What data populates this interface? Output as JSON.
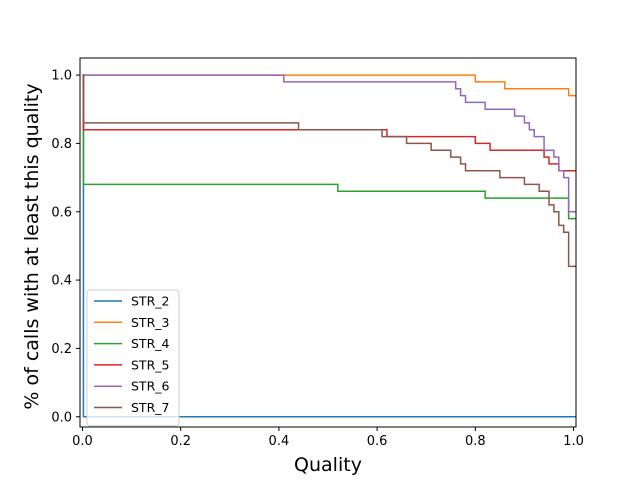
{
  "chart_data": {
    "type": "line",
    "step": true,
    "xlabel": "Quality",
    "ylabel": "% of calls with at least this quality",
    "xlim": [
      -0.005,
      1.005
    ],
    "ylim": [
      -0.03,
      1.05
    ],
    "xticks": [
      0.0,
      0.2,
      0.4,
      0.6,
      0.8,
      1.0
    ],
    "xtick_labels": [
      "0.0",
      "0.2",
      "0.4",
      "0.6",
      "0.8",
      "1.0"
    ],
    "yticks": [
      0.0,
      0.2,
      0.4,
      0.6,
      0.8,
      1.0
    ],
    "ytick_labels": [
      "0.0",
      "0.2",
      "0.4",
      "0.6",
      "0.8",
      "1.0"
    ],
    "grid": false,
    "legend_position": "lower-left",
    "series": [
      {
        "name": "STR_2",
        "color": "#1f77b4",
        "points": [
          [
            0.0,
            1.0
          ],
          [
            0.002,
            1.0
          ],
          [
            0.002,
            0.0
          ],
          [
            1.005,
            0.0
          ]
        ]
      },
      {
        "name": "STR_3",
        "color": "#ff7f0e",
        "points": [
          [
            0.0,
            1.0
          ],
          [
            0.8,
            1.0
          ],
          [
            0.8,
            0.98
          ],
          [
            0.86,
            0.98
          ],
          [
            0.86,
            0.96
          ],
          [
            0.99,
            0.96
          ],
          [
            0.99,
            0.94
          ],
          [
            1.005,
            0.94
          ]
        ]
      },
      {
        "name": "STR_4",
        "color": "#2ca02c",
        "points": [
          [
            0.0,
            1.0
          ],
          [
            0.002,
            1.0
          ],
          [
            0.002,
            0.68
          ],
          [
            0.52,
            0.68
          ],
          [
            0.52,
            0.66
          ],
          [
            0.82,
            0.66
          ],
          [
            0.82,
            0.64
          ],
          [
            0.99,
            0.64
          ],
          [
            0.99,
            0.58
          ],
          [
            1.005,
            0.58
          ]
        ]
      },
      {
        "name": "STR_5",
        "color": "#d62728",
        "points": [
          [
            0.0,
            1.0
          ],
          [
            0.002,
            1.0
          ],
          [
            0.002,
            0.84
          ],
          [
            0.62,
            0.84
          ],
          [
            0.62,
            0.82
          ],
          [
            0.8,
            0.82
          ],
          [
            0.8,
            0.8
          ],
          [
            0.83,
            0.8
          ],
          [
            0.83,
            0.78
          ],
          [
            0.94,
            0.78
          ],
          [
            0.94,
            0.76
          ],
          [
            0.95,
            0.76
          ],
          [
            0.95,
            0.74
          ],
          [
            0.97,
            0.74
          ],
          [
            0.97,
            0.72
          ],
          [
            1.005,
            0.72
          ]
        ]
      },
      {
        "name": "STR_6",
        "color": "#9467bd",
        "points": [
          [
            0.0,
            1.0
          ],
          [
            0.41,
            1.0
          ],
          [
            0.41,
            0.98
          ],
          [
            0.76,
            0.98
          ],
          [
            0.76,
            0.96
          ],
          [
            0.77,
            0.96
          ],
          [
            0.77,
            0.94
          ],
          [
            0.78,
            0.94
          ],
          [
            0.78,
            0.92
          ],
          [
            0.82,
            0.92
          ],
          [
            0.82,
            0.9
          ],
          [
            0.88,
            0.9
          ],
          [
            0.88,
            0.88
          ],
          [
            0.9,
            0.88
          ],
          [
            0.9,
            0.86
          ],
          [
            0.91,
            0.86
          ],
          [
            0.91,
            0.84
          ],
          [
            0.92,
            0.84
          ],
          [
            0.92,
            0.82
          ],
          [
            0.94,
            0.82
          ],
          [
            0.94,
            0.78
          ],
          [
            0.96,
            0.78
          ],
          [
            0.96,
            0.76
          ],
          [
            0.97,
            0.76
          ],
          [
            0.97,
            0.72
          ],
          [
            0.98,
            0.72
          ],
          [
            0.98,
            0.7
          ],
          [
            0.99,
            0.7
          ],
          [
            0.99,
            0.6
          ],
          [
            1.005,
            0.6
          ]
        ]
      },
      {
        "name": "STR_7",
        "color": "#8c564b",
        "points": [
          [
            0.0,
            1.0
          ],
          [
            0.002,
            1.0
          ],
          [
            0.002,
            0.86
          ],
          [
            0.44,
            0.86
          ],
          [
            0.44,
            0.84
          ],
          [
            0.61,
            0.84
          ],
          [
            0.61,
            0.82
          ],
          [
            0.66,
            0.82
          ],
          [
            0.66,
            0.8
          ],
          [
            0.71,
            0.8
          ],
          [
            0.71,
            0.78
          ],
          [
            0.75,
            0.78
          ],
          [
            0.75,
            0.76
          ],
          [
            0.77,
            0.76
          ],
          [
            0.77,
            0.74
          ],
          [
            0.78,
            0.74
          ],
          [
            0.78,
            0.72
          ],
          [
            0.85,
            0.72
          ],
          [
            0.85,
            0.7
          ],
          [
            0.9,
            0.7
          ],
          [
            0.9,
            0.68
          ],
          [
            0.93,
            0.68
          ],
          [
            0.93,
            0.66
          ],
          [
            0.95,
            0.66
          ],
          [
            0.95,
            0.62
          ],
          [
            0.96,
            0.62
          ],
          [
            0.96,
            0.6
          ],
          [
            0.97,
            0.6
          ],
          [
            0.97,
            0.56
          ],
          [
            0.98,
            0.56
          ],
          [
            0.98,
            0.54
          ],
          [
            0.99,
            0.54
          ],
          [
            0.99,
            0.44
          ],
          [
            1.005,
            0.44
          ]
        ]
      }
    ]
  }
}
